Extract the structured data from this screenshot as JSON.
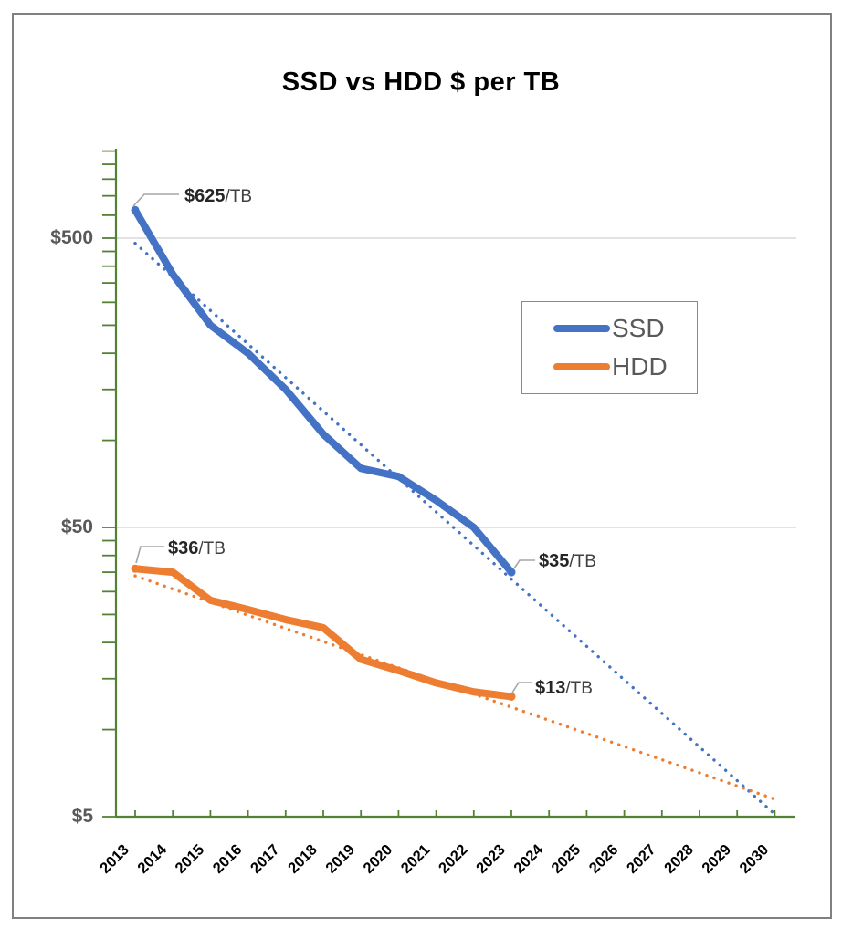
{
  "colors": {
    "ssd_blue": "#4472C4",
    "hdd_orange": "#ED7D31",
    "axis_green": "#548235",
    "gridline_gray": "#D9D9D9",
    "ylabel_gray": "#595959",
    "xlabel_black": "#000000",
    "leader_gray": "#A6A6A6"
  },
  "chart_data": {
    "type": "line",
    "title": "SSD vs HDD $ per TB",
    "y_scale": "log",
    "x": [
      2013,
      2014,
      2015,
      2016,
      2017,
      2018,
      2019,
      2020,
      2021,
      2022,
      2023
    ],
    "series": [
      {
        "name": "SSD",
        "color": "#4472C4",
        "values": [
          625,
          375,
          250,
          200,
          150,
          105,
          80,
          75,
          62,
          50,
          35
        ]
      },
      {
        "name": "HDD",
        "color": "#ED7D31",
        "values": [
          36,
          35,
          28,
          26,
          24,
          22.5,
          17.5,
          16,
          14.5,
          13.5,
          13
        ]
      }
    ],
    "trendlines": [
      {
        "series": "SSD",
        "style": "dotted",
        "color": "#4472C4",
        "x": [
          2013,
          2030
        ],
        "values": [
          480,
          5.1
        ]
      },
      {
        "series": "HDD",
        "style": "dotted",
        "color": "#ED7D31",
        "x": [
          2013,
          2030
        ],
        "values": [
          34,
          5.75
        ]
      }
    ],
    "annotations": [
      {
        "series": "SSD",
        "year": 2013,
        "value_label": "$625",
        "unit_label": "/TB"
      },
      {
        "series": "HDD",
        "year": 2013,
        "value_label": "$36",
        "unit_label": "/TB"
      },
      {
        "series": "SSD",
        "year": 2023,
        "value_label": "$35",
        "unit_label": "/TB"
      },
      {
        "series": "HDD",
        "year": 2023,
        "value_label": "$13",
        "unit_label": "/TB"
      }
    ],
    "x_axis": {
      "categories": [
        "2013",
        "2014",
        "2015",
        "2016",
        "2017",
        "2018",
        "2019",
        "2020",
        "2021",
        "2022",
        "2023",
        "2024",
        "2025",
        "2026",
        "2027",
        "2028",
        "2029",
        "2030"
      ]
    },
    "y_axis": {
      "tick_labels": [
        "$500",
        "$50",
        "$5"
      ],
      "tick_values": [
        500,
        50,
        5
      ],
      "minor_tick_values": [
        1000,
        900,
        800,
        700,
        600,
        450,
        400,
        350,
        300,
        250,
        200,
        150,
        100,
        45,
        40,
        35,
        30,
        25,
        20,
        15,
        10
      ],
      "range": [
        5,
        1000
      ],
      "gridline_values": [
        500,
        50
      ]
    },
    "legend": {
      "items": [
        "SSD",
        "HDD"
      ],
      "position": "upper-right"
    }
  }
}
